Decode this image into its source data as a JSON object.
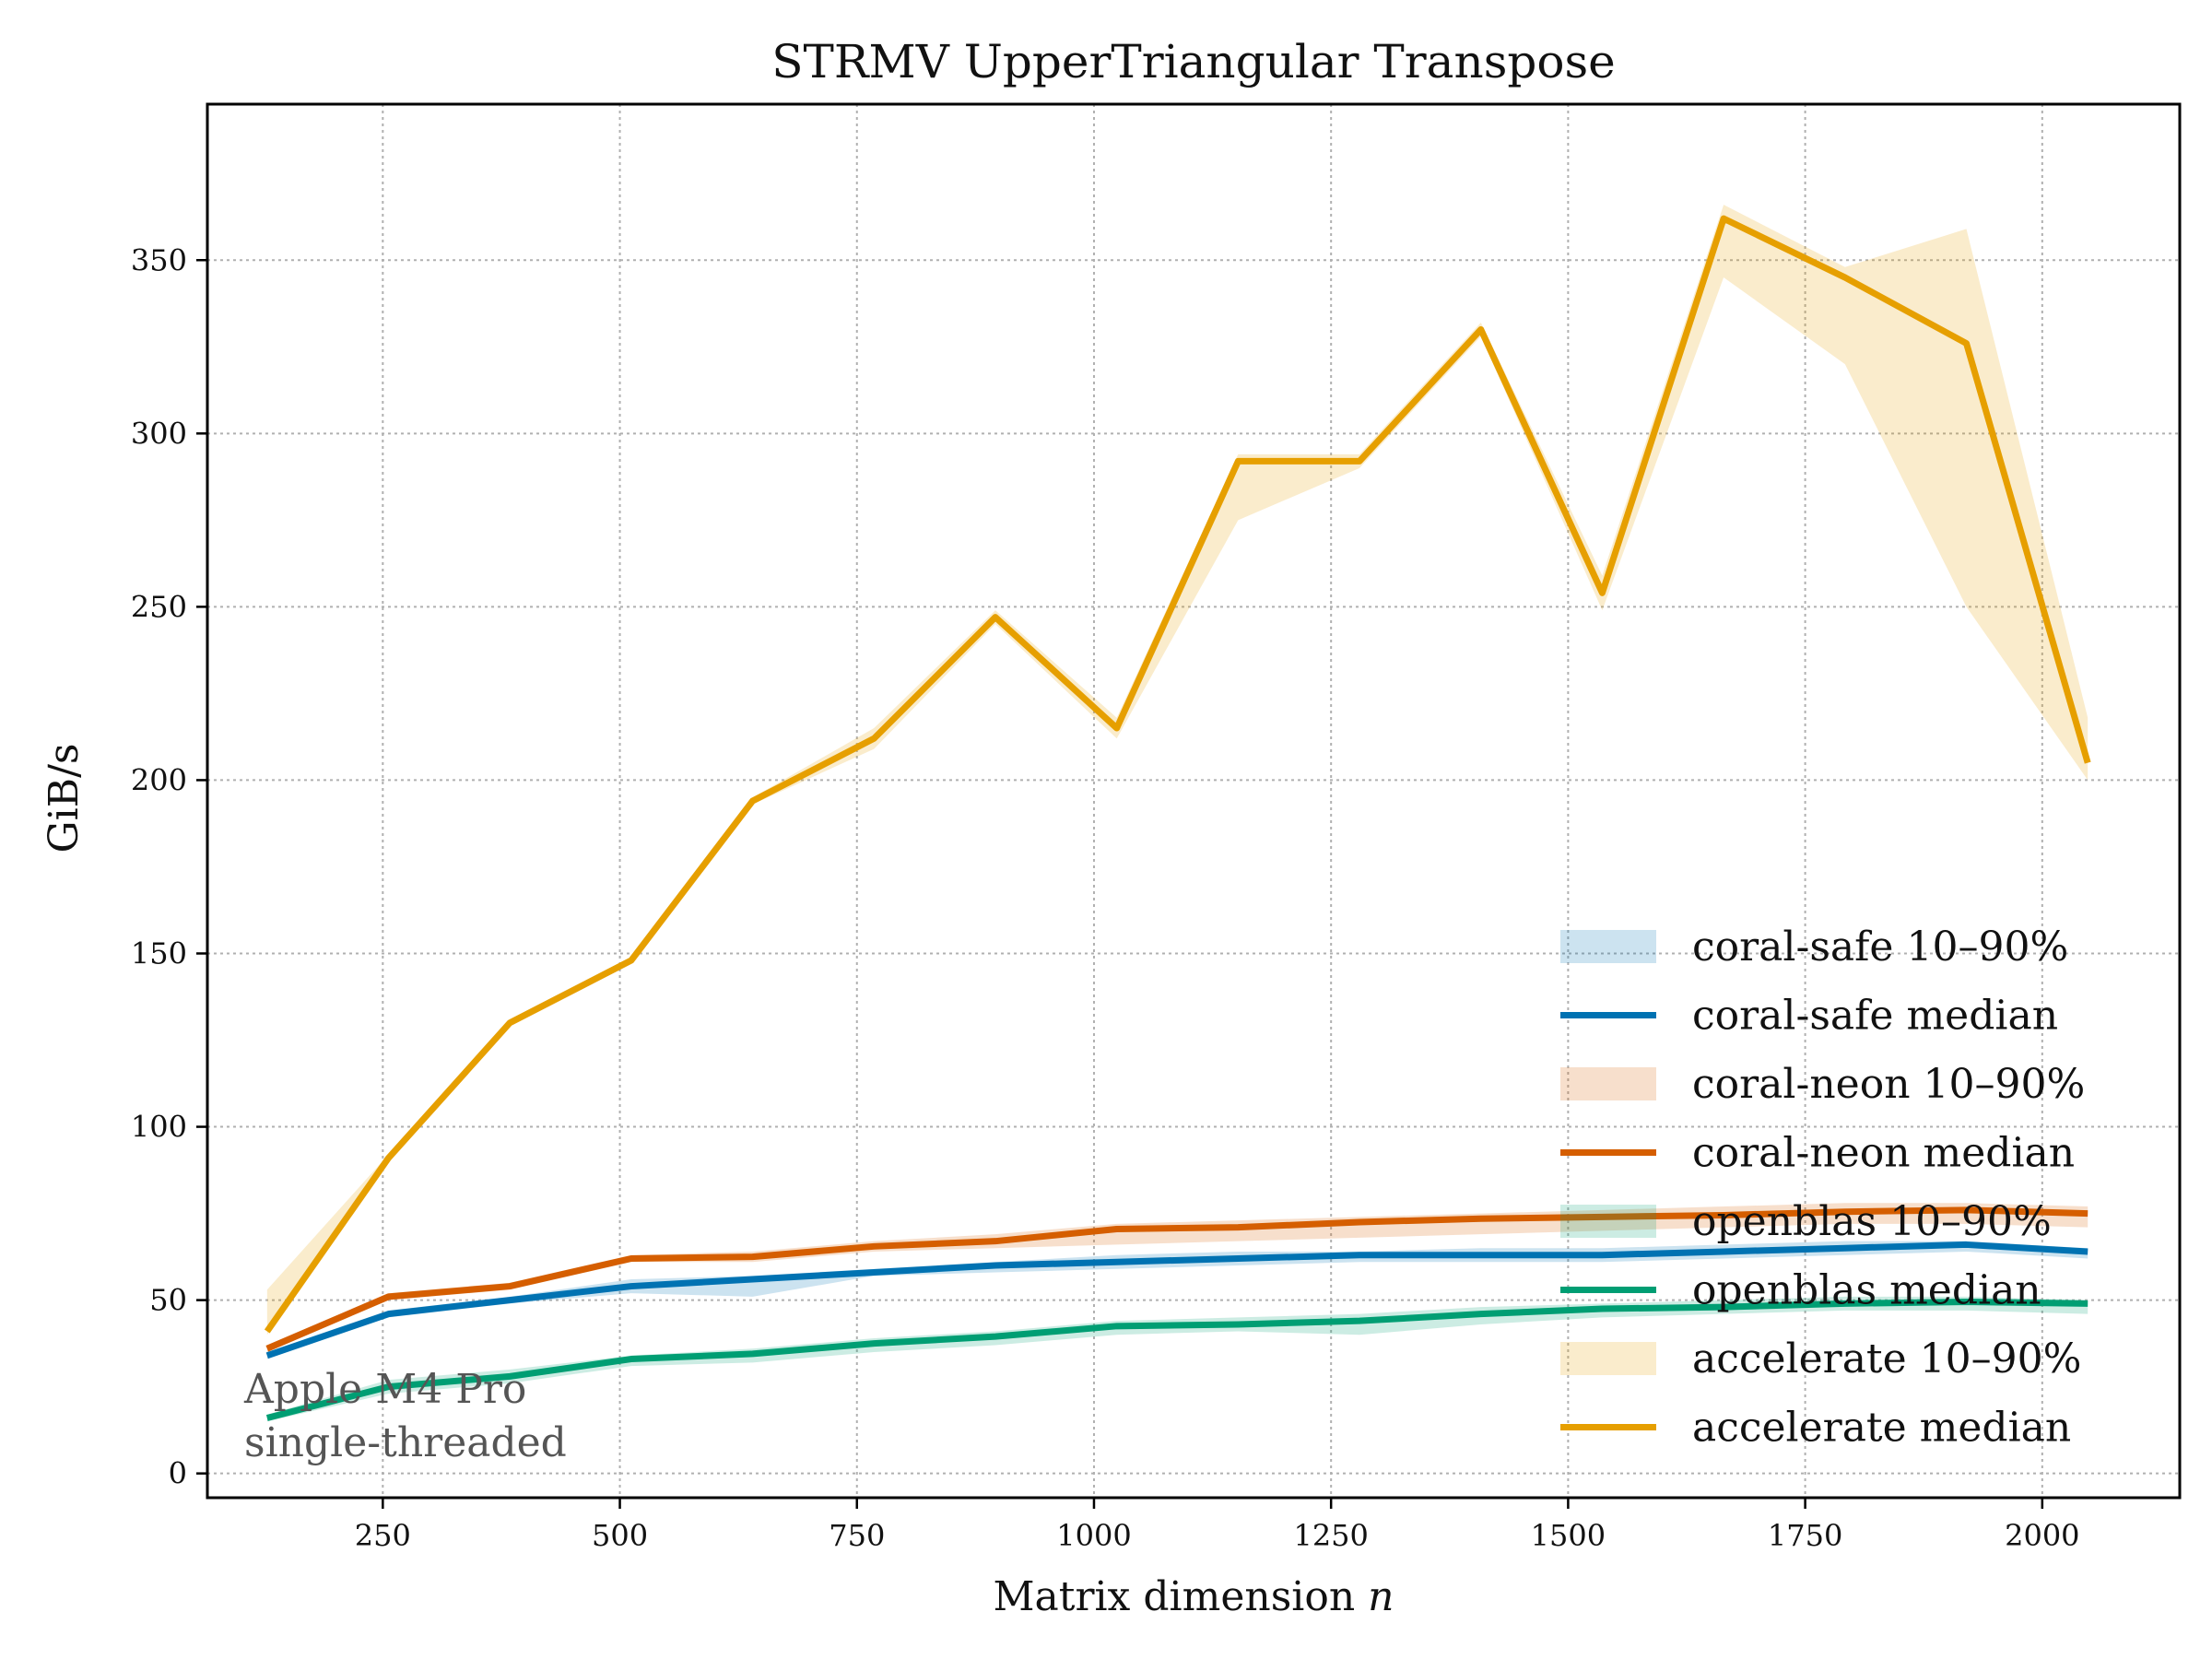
{
  "chart_data": {
    "type": "line",
    "title": "STRMV UpperTriangular Transpose",
    "xlabel": "Matrix dimension n",
    "ylabel": "GiB/s",
    "xlim": [
      65,
      2145
    ],
    "ylim": [
      -7,
      395
    ],
    "xticks": [
      250,
      500,
      750,
      1000,
      1250,
      1500,
      1750,
      2000
    ],
    "yticks": [
      0,
      50,
      100,
      150,
      200,
      250,
      300,
      350
    ],
    "grid": true,
    "legend_position": "lower-right",
    "x": [
      128,
      256,
      384,
      512,
      640,
      768,
      896,
      1024,
      1152,
      1280,
      1408,
      1536,
      1664,
      1792,
      1920,
      2048
    ],
    "series": [
      {
        "name": "coral-safe",
        "color": "#0072b2",
        "median": [
          34,
          46,
          50,
          54,
          56,
          58,
          60,
          61,
          62,
          63,
          63,
          63,
          64,
          65,
          66,
          64
        ],
        "p10": [
          33,
          45,
          49,
          52,
          51,
          57,
          58,
          59,
          60,
          61,
          61,
          61,
          62,
          63,
          64,
          62
        ],
        "p90": [
          35,
          47,
          51,
          56,
          57,
          59,
          61,
          63,
          64,
          64,
          65,
          65,
          66,
          67,
          67,
          65
        ]
      },
      {
        "name": "coral-neon",
        "color": "#d55e00",
        "median": [
          36,
          51,
          54,
          62,
          62.5,
          65.5,
          67,
          70.5,
          71,
          72.5,
          73.5,
          74,
          74.5,
          75.5,
          76,
          75
        ],
        "p10": [
          35,
          50,
          53,
          61,
          61,
          64,
          65,
          66,
          67,
          68,
          69,
          70,
          71,
          72,
          72,
          71
        ],
        "p90": [
          37,
          52,
          55,
          63,
          64,
          67,
          69,
          72,
          73,
          74,
          75,
          76,
          77,
          78,
          78,
          77
        ]
      },
      {
        "name": "openblas",
        "color": "#009e73",
        "median": [
          16,
          25,
          28,
          33,
          34.5,
          37.5,
          39.5,
          42.5,
          43,
          44,
          46,
          47.5,
          48,
          49,
          49.5,
          49
        ],
        "p10": [
          15,
          23,
          26,
          31,
          32,
          35,
          37,
          40,
          41,
          40,
          43,
          45,
          46,
          47,
          47,
          46
        ],
        "p90": [
          17,
          27,
          30,
          34,
          36,
          39,
          41,
          44,
          45,
          46,
          48,
          49,
          50,
          51,
          51,
          50
        ]
      },
      {
        "name": "accelerate",
        "color": "#e69f00",
        "median": [
          41,
          91,
          130,
          148,
          194,
          212,
          247,
          215,
          292,
          292,
          330,
          254,
          362,
          345,
          326,
          205
        ],
        "p10": [
          40,
          90,
          129,
          147,
          193,
          209,
          245,
          212,
          275,
          290,
          328,
          249,
          345,
          320,
          250,
          200
        ],
        "p90": [
          53,
          92,
          131,
          149,
          195,
          215,
          249,
          218,
          294,
          294,
          332,
          259,
          366,
          348,
          359,
          218
        ]
      }
    ],
    "legend": [
      {
        "label": "coral-safe 10–90%",
        "kind": "band",
        "series": 0
      },
      {
        "label": "coral-safe median",
        "kind": "line",
        "series": 0
      },
      {
        "label": "coral-neon 10–90%",
        "kind": "band",
        "series": 1
      },
      {
        "label": "coral-neon median",
        "kind": "line",
        "series": 1
      },
      {
        "label": "openblas 10–90%",
        "kind": "band",
        "series": 2
      },
      {
        "label": "openblas median",
        "kind": "line",
        "series": 2
      },
      {
        "label": "accelerate 10–90%",
        "kind": "band",
        "series": 3
      },
      {
        "label": "accelerate median",
        "kind": "line",
        "series": 3
      }
    ],
    "annotation": [
      "Apple M4 Pro",
      "single-threaded"
    ]
  }
}
